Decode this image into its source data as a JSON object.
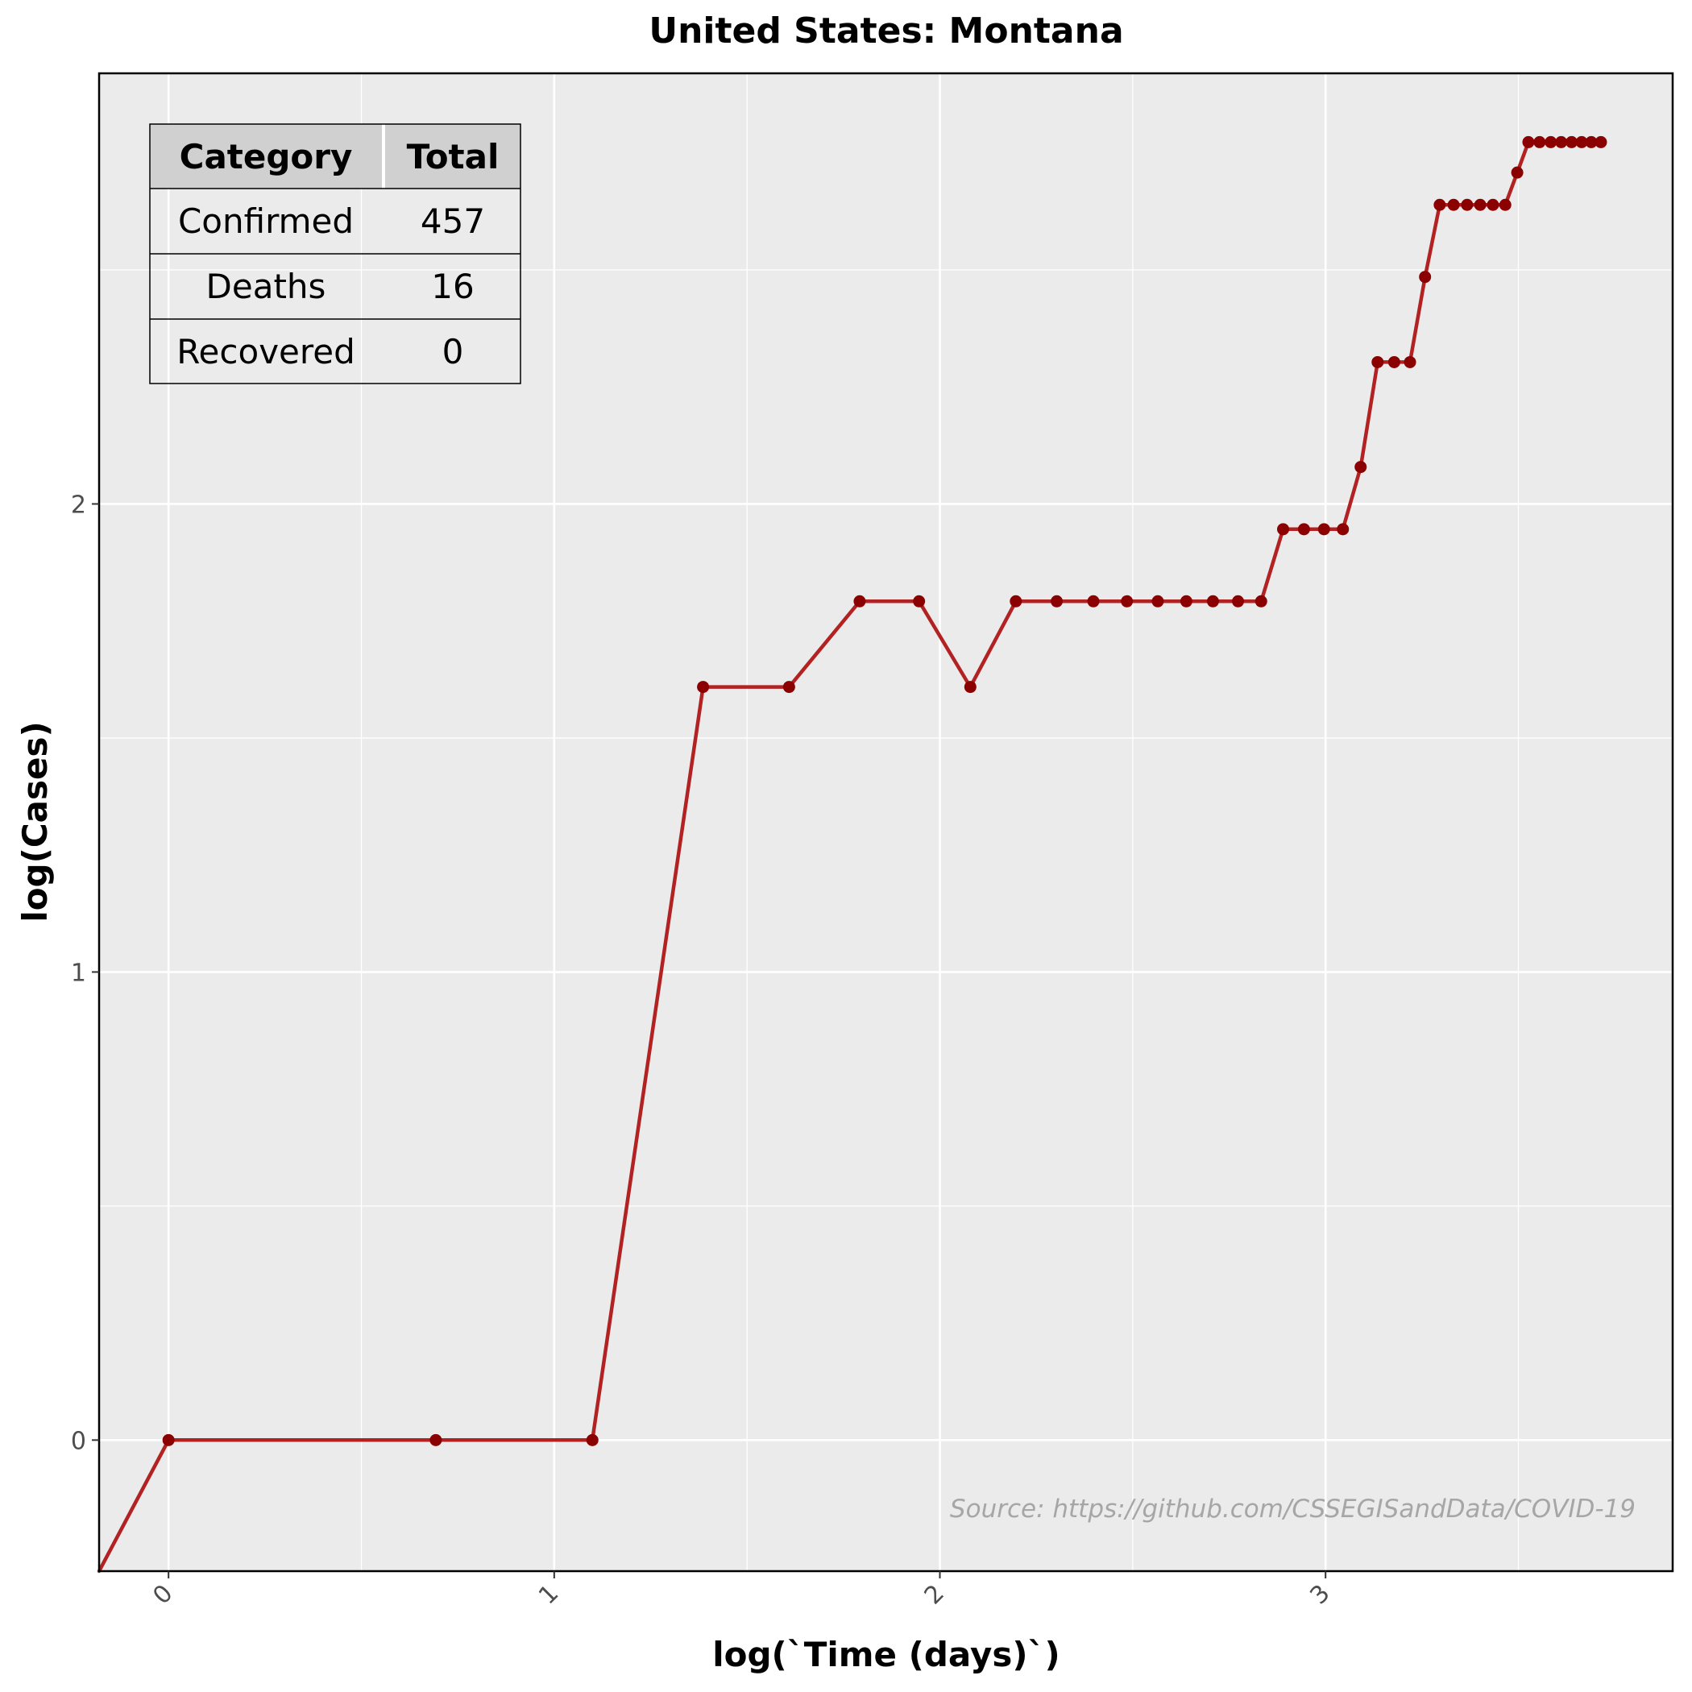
{
  "chart_data": {
    "type": "line",
    "title": "United States: Montana",
    "xlabel": "log(`Time (days)`)",
    "ylabel": "log(Cases)",
    "xlim": [
      -0.18,
      3.9
    ],
    "ylim": [
      -0.28,
      2.92
    ],
    "x_ticks": [
      0,
      1,
      2,
      3
    ],
    "x_tick_labels": [
      "0",
      "1",
      "2",
      "3"
    ],
    "y_ticks": [
      0,
      1,
      2
    ],
    "y_tick_labels": [
      "0",
      "1",
      "2"
    ],
    "grid": true,
    "line_color": "#b22222",
    "point_color": "#8b0000",
    "panel_background": "#ebebeb",
    "series": [
      {
        "x": [
          -0.18,
          0.0,
          0.693,
          1.099,
          1.386,
          1.609,
          1.792,
          1.946,
          2.079,
          2.197,
          2.303,
          2.398,
          2.485,
          2.565,
          2.639,
          2.708,
          2.773,
          2.833,
          2.89,
          2.944,
          2.996,
          3.045,
          3.091,
          3.135,
          3.178,
          3.219,
          3.258,
          3.296,
          3.332,
          3.367,
          3.401,
          3.434,
          3.466,
          3.497,
          3.526,
          3.555,
          3.584,
          3.611,
          3.638,
          3.664,
          3.689,
          3.714
        ],
        "y": [
          -0.28,
          0.0,
          0.0,
          0.0,
          1.609,
          1.609,
          1.792,
          1.792,
          1.609,
          1.792,
          1.792,
          1.792,
          1.792,
          1.792,
          1.792,
          1.792,
          1.792,
          1.792,
          1.946,
          1.946,
          1.946,
          1.946,
          2.079,
          2.303,
          2.303,
          2.303,
          2.485,
          2.639,
          2.639,
          2.639,
          2.639,
          2.639,
          2.639,
          2.708,
          2.773,
          2.773,
          2.773,
          2.773,
          2.773,
          2.773,
          2.773,
          2.773
        ]
      }
    ],
    "annotation": "Source: https://github.com/CSSEGISandData/COVID-19"
  },
  "summary_table": {
    "headers": [
      "Category",
      "Total"
    ],
    "rows": [
      [
        "Confirmed",
        "457"
      ],
      [
        "Deaths",
        "16"
      ],
      [
        "Recovered",
        "0"
      ]
    ]
  }
}
